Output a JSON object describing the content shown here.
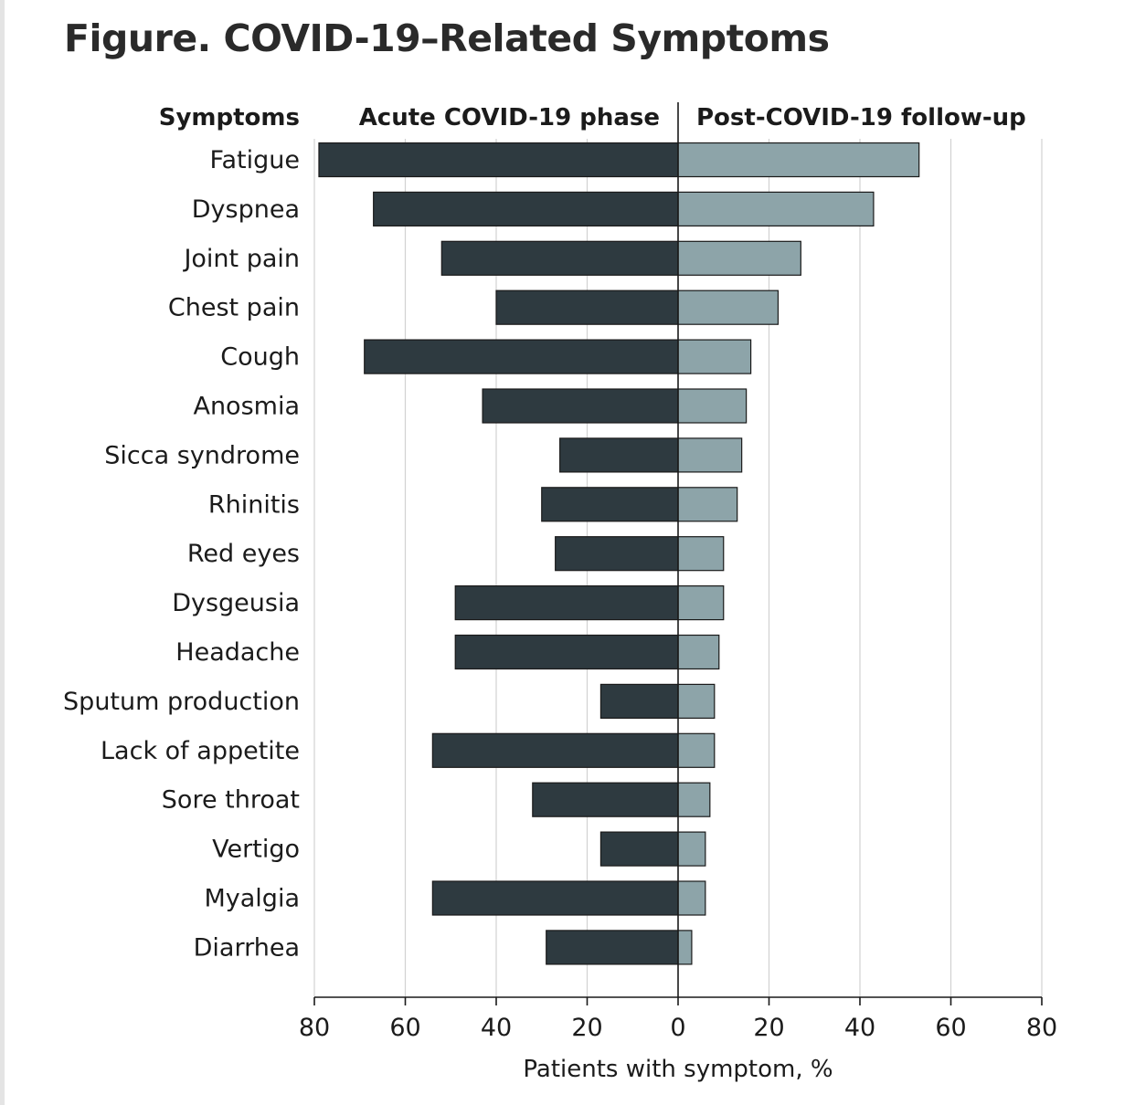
{
  "figure": {
    "title": "Figure.  COVID-19–Related Symptoms"
  },
  "chart_data": {
    "type": "bar",
    "orientation": "horizontal-diverging",
    "title": "Figure.  COVID-19–Related Symptoms",
    "row_header": "Symptoms",
    "xlabel": "Patients with symptom, %",
    "ylabel": "Symptoms",
    "xlim": [
      -80,
      80
    ],
    "ticks": [
      -80,
      -60,
      -40,
      -20,
      0,
      20,
      40,
      60,
      80
    ],
    "tick_labels": [
      "80",
      "60",
      "40",
      "20",
      "0",
      "20",
      "40",
      "60",
      "80"
    ],
    "grid": true,
    "categories": [
      "Fatigue",
      "Dyspnea",
      "Joint pain",
      "Chest pain",
      "Cough",
      "Anosmia",
      "Sicca syndrome",
      "Rhinitis",
      "Red eyes",
      "Dysgeusia",
      "Headache",
      "Sputum production",
      "Lack of appetite",
      "Sore throat",
      "Vertigo",
      "Myalgia",
      "Diarrhea"
    ],
    "series": [
      {
        "name": "Acute COVID-19 phase",
        "side": "left",
        "color": "#2e3a40",
        "values": [
          79,
          67,
          52,
          40,
          69,
          43,
          26,
          30,
          27,
          49,
          49,
          17,
          54,
          32,
          17,
          54,
          29
        ]
      },
      {
        "name": "Post-COVID-19 follow-up",
        "side": "right",
        "color": "#8da4a9",
        "values": [
          53,
          43,
          27,
          22,
          16,
          15,
          14,
          13,
          10,
          10,
          9,
          8,
          8,
          7,
          6,
          6,
          3
        ]
      }
    ]
  }
}
